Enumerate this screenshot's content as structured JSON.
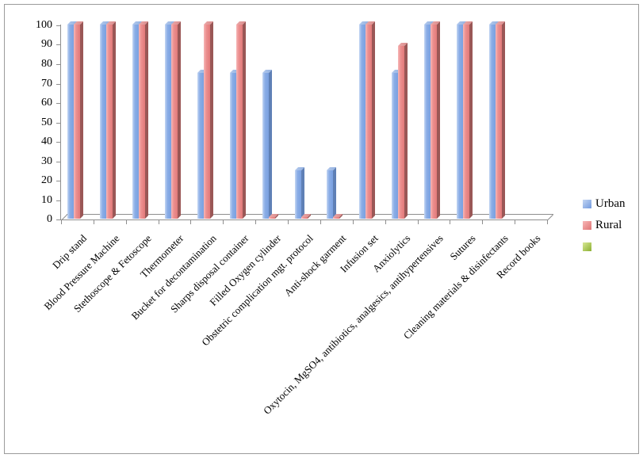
{
  "chart_data": {
    "type": "bar",
    "title": "",
    "xlabel": "",
    "ylabel": "",
    "categories": [
      "Drip stand",
      "Blood Pressure Machine",
      "Stethoscope & Fetoscope",
      "Thermometer",
      "Bucket for decontamination",
      "Sharps disposal container",
      "Filled Oxygen cylinder",
      "Obstetric complication mgt. protocol",
      "Anti-shock garment",
      "Infusion set",
      "Anxiolytics",
      "Oxytocin, MgSO4, antibiotics, analgesics, antihypertensives",
      "Sutures",
      "Cleaning materials & disinfectants",
      "Record books"
    ],
    "series": [
      {
        "name": "Urban",
        "values": [
          100,
          100,
          100,
          100,
          75,
          75,
          75,
          25,
          25,
          100,
          75,
          100,
          100,
          100,
          0
        ]
      },
      {
        "name": "Rural",
        "values": [
          100,
          100,
          100,
          100,
          100,
          100,
          1,
          1,
          1,
          100,
          89,
          100,
          100,
          100,
          0
        ]
      },
      {
        "name": "",
        "values": [
          0,
          0,
          0,
          0,
          0,
          0,
          0,
          0,
          0,
          0,
          0,
          0,
          0,
          0,
          0
        ]
      }
    ],
    "ylim": [
      0,
      100
    ],
    "yticks": [
      0,
      10,
      20,
      30,
      40,
      50,
      60,
      70,
      80,
      90,
      100
    ],
    "grid": false,
    "legend_position": "right",
    "bar_style": "3d"
  },
  "legend": {
    "items": [
      {
        "label": "Urban"
      },
      {
        "label": "Rural"
      },
      {
        "label": ""
      }
    ]
  },
  "colors": {
    "axis": "#8E8E8E",
    "frame": "#9B9B9B",
    "text": "#000000",
    "series": [
      {
        "light": "#C4D6F3",
        "mid": "#8AADE6",
        "dark": "#7AA0E0",
        "side": "#5F80B6",
        "cap_light": "#B2C9EE",
        "cap": "#93B0DF"
      },
      {
        "light": "#F7B7B7",
        "mid": "#EC8F8F",
        "dark": "#E27A7A",
        "side": "#9A5756",
        "cap_light": "#ECA8A8",
        "cap": "#D98C8C"
      },
      {
        "light": "#D8E896",
        "mid": "#A9CA4B",
        "dark": "#93B53B",
        "side": "#71902C",
        "cap_light": "#CBE07E",
        "cap": "#A9CA4B"
      }
    ]
  }
}
